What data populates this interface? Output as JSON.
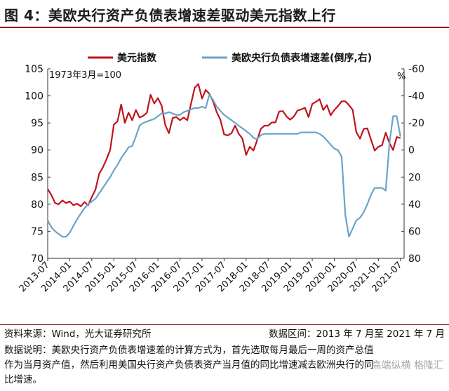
{
  "figure_title": "图 4：美欧央行资产负债表增速差驱动美元指数上行",
  "chart_data": {
    "type": "line",
    "title": "",
    "annotation": "1973年3月=100",
    "right_unit": "%",
    "legend_position": "top",
    "grid": false,
    "x_tick_labels": [
      "2013-07",
      "2014-01",
      "2014-07",
      "2015-01",
      "2015-07",
      "2016-01",
      "2016-07",
      "2017-01",
      "2017-07",
      "2018-01",
      "2018-07",
      "2019-01",
      "2019-07",
      "2020-01",
      "2020-07",
      "2021-01",
      "2021-07"
    ],
    "x_range": [
      "2013-07",
      "2021-08"
    ],
    "y_left": {
      "min": 70,
      "max": 105,
      "ticks": [
        70,
        75,
        80,
        85,
        90,
        95,
        100,
        105
      ]
    },
    "y_right": {
      "min": 80,
      "max": -60,
      "inverted": true,
      "ticks": [
        -60,
        -40,
        -20,
        0,
        20,
        40,
        60,
        80
      ]
    },
    "series": [
      {
        "name": "美元指数",
        "axis": "left",
        "color": "#c0141d",
        "points": [
          [
            "2013-07",
            82.8
          ],
          [
            "2013-08",
            81.7
          ],
          [
            "2013-09",
            80.2
          ],
          [
            "2013-10",
            80.0
          ],
          [
            "2013-11",
            80.7
          ],
          [
            "2013-12",
            80.2
          ],
          [
            "2014-01",
            80.5
          ],
          [
            "2014-02",
            79.8
          ],
          [
            "2014-03",
            80.1
          ],
          [
            "2014-04",
            79.6
          ],
          [
            "2014-05",
            80.4
          ],
          [
            "2014-06",
            79.8
          ],
          [
            "2014-07",
            81.3
          ],
          [
            "2014-08",
            82.7
          ],
          [
            "2014-09",
            85.6
          ],
          [
            "2014-10",
            86.8
          ],
          [
            "2014-11",
            88.3
          ],
          [
            "2014-12",
            90.0
          ],
          [
            "2015-01",
            94.7
          ],
          [
            "2015-02",
            95.3
          ],
          [
            "2015-03",
            98.4
          ],
          [
            "2015-04",
            95.0
          ],
          [
            "2015-05",
            96.9
          ],
          [
            "2015-06",
            95.5
          ],
          [
            "2015-07",
            97.4
          ],
          [
            "2015-08",
            96.0
          ],
          [
            "2015-09",
            96.3
          ],
          [
            "2015-10",
            96.9
          ],
          [
            "2015-11",
            100.2
          ],
          [
            "2015-12",
            98.6
          ],
          [
            "2016-01",
            99.6
          ],
          [
            "2016-02",
            98.2
          ],
          [
            "2016-03",
            94.6
          ],
          [
            "2016-04",
            93.1
          ],
          [
            "2016-05",
            95.9
          ],
          [
            "2016-06",
            96.1
          ],
          [
            "2016-07",
            95.5
          ],
          [
            "2016-08",
            96.0
          ],
          [
            "2016-09",
            95.5
          ],
          [
            "2016-10",
            98.5
          ],
          [
            "2016-11",
            101.5
          ],
          [
            "2016-12",
            102.2
          ],
          [
            "2017-01",
            99.5
          ],
          [
            "2017-02",
            101.1
          ],
          [
            "2017-03",
            100.4
          ],
          [
            "2017-04",
            99.0
          ],
          [
            "2017-05",
            97.0
          ],
          [
            "2017-06",
            95.6
          ],
          [
            "2017-07",
            92.9
          ],
          [
            "2017-08",
            92.7
          ],
          [
            "2017-09",
            93.1
          ],
          [
            "2017-10",
            94.5
          ],
          [
            "2017-11",
            93.0
          ],
          [
            "2017-12",
            92.1
          ],
          [
            "2018-01",
            89.1
          ],
          [
            "2018-02",
            90.6
          ],
          [
            "2018-03",
            89.9
          ],
          [
            "2018-04",
            91.8
          ],
          [
            "2018-05",
            93.9
          ],
          [
            "2018-06",
            94.5
          ],
          [
            "2018-07",
            94.5
          ],
          [
            "2018-08",
            95.1
          ],
          [
            "2018-09",
            95.1
          ],
          [
            "2018-10",
            97.1
          ],
          [
            "2018-11",
            97.2
          ],
          [
            "2018-12",
            96.2
          ],
          [
            "2019-01",
            95.6
          ],
          [
            "2019-02",
            96.2
          ],
          [
            "2019-03",
            97.3
          ],
          [
            "2019-04",
            97.5
          ],
          [
            "2019-05",
            97.8
          ],
          [
            "2019-06",
            96.1
          ],
          [
            "2019-07",
            98.5
          ],
          [
            "2019-08",
            98.9
          ],
          [
            "2019-09",
            99.4
          ],
          [
            "2019-10",
            97.4
          ],
          [
            "2019-11",
            98.3
          ],
          [
            "2019-12",
            96.4
          ],
          [
            "2020-01",
            97.4
          ],
          [
            "2020-02",
            98.1
          ],
          [
            "2020-03",
            99.0
          ],
          [
            "2020-04",
            99.0
          ],
          [
            "2020-05",
            98.3
          ],
          [
            "2020-06",
            97.4
          ],
          [
            "2020-07",
            93.3
          ],
          [
            "2020-08",
            92.1
          ],
          [
            "2020-09",
            93.9
          ],
          [
            "2020-10",
            94.0
          ],
          [
            "2020-11",
            91.9
          ],
          [
            "2020-12",
            89.9
          ],
          [
            "2021-01",
            90.6
          ],
          [
            "2021-02",
            90.9
          ],
          [
            "2021-03",
            93.2
          ],
          [
            "2021-04",
            91.3
          ],
          [
            "2021-05",
            90.0
          ],
          [
            "2021-06",
            92.4
          ],
          [
            "2021-07",
            92.2
          ]
        ]
      },
      {
        "name": "美欧央行负债表增速差(倒序,右)",
        "axis": "right",
        "color": "#6aa4c8",
        "points": [
          [
            "2013-07",
            52
          ],
          [
            "2013-08",
            57
          ],
          [
            "2013-09",
            60
          ],
          [
            "2013-10",
            62
          ],
          [
            "2013-11",
            64
          ],
          [
            "2013-12",
            64
          ],
          [
            "2014-01",
            61
          ],
          [
            "2014-02",
            56
          ],
          [
            "2014-03",
            51
          ],
          [
            "2014-04",
            47
          ],
          [
            "2014-05",
            43
          ],
          [
            "2014-06",
            40
          ],
          [
            "2014-07",
            38
          ],
          [
            "2014-08",
            36
          ],
          [
            "2014-09",
            32
          ],
          [
            "2014-10",
            28
          ],
          [
            "2014-11",
            24
          ],
          [
            "2014-12",
            20
          ],
          [
            "2015-01",
            15
          ],
          [
            "2015-02",
            11
          ],
          [
            "2015-03",
            6
          ],
          [
            "2015-04",
            2
          ],
          [
            "2015-05",
            -2
          ],
          [
            "2015-06",
            -3
          ],
          [
            "2015-07",
            -10
          ],
          [
            "2015-08",
            -18
          ],
          [
            "2015-09",
            -20
          ],
          [
            "2015-10",
            -21
          ],
          [
            "2015-11",
            -22
          ],
          [
            "2015-12",
            -23
          ],
          [
            "2016-01",
            -25
          ],
          [
            "2016-02",
            -27
          ],
          [
            "2016-03",
            -27
          ],
          [
            "2016-04",
            -28
          ],
          [
            "2016-05",
            -27
          ],
          [
            "2016-06",
            -26
          ],
          [
            "2016-07",
            -26
          ],
          [
            "2016-08",
            -28
          ],
          [
            "2016-09",
            -29
          ],
          [
            "2016-10",
            -30
          ],
          [
            "2016-11",
            -31
          ],
          [
            "2016-12",
            -31
          ],
          [
            "2017-01",
            -32
          ],
          [
            "2017-02",
            -31
          ],
          [
            "2017-03",
            -41
          ],
          [
            "2017-04",
            -37
          ],
          [
            "2017-05",
            -32
          ],
          [
            "2017-06",
            -29
          ],
          [
            "2017-07",
            -26
          ],
          [
            "2017-08",
            -24
          ],
          [
            "2017-09",
            -22
          ],
          [
            "2017-10",
            -20
          ],
          [
            "2017-11",
            -18
          ],
          [
            "2017-12",
            -16
          ],
          [
            "2018-01",
            -14
          ],
          [
            "2018-02",
            -12
          ],
          [
            "2018-03",
            -9
          ],
          [
            "2018-04",
            -8
          ],
          [
            "2018-05",
            -11
          ],
          [
            "2018-06",
            -12
          ],
          [
            "2018-07",
            -12
          ],
          [
            "2018-08",
            -12
          ],
          [
            "2018-09",
            -12
          ],
          [
            "2018-10",
            -12
          ],
          [
            "2018-11",
            -12
          ],
          [
            "2018-12",
            -12
          ],
          [
            "2019-01",
            -12
          ],
          [
            "2019-02",
            -12
          ],
          [
            "2019-03",
            -12
          ],
          [
            "2019-04",
            -13
          ],
          [
            "2019-05",
            -13
          ],
          [
            "2019-06",
            -13
          ],
          [
            "2019-07",
            -13
          ],
          [
            "2019-08",
            -13
          ],
          [
            "2019-09",
            -12
          ],
          [
            "2019-10",
            -10
          ],
          [
            "2019-11",
            -7
          ],
          [
            "2019-12",
            -4
          ],
          [
            "2020-01",
            -1
          ],
          [
            "2020-02",
            0
          ],
          [
            "2020-03",
            5
          ],
          [
            "2020-04",
            48
          ],
          [
            "2020-05",
            64
          ],
          [
            "2020-06",
            58
          ],
          [
            "2020-07",
            52
          ],
          [
            "2020-08",
            50
          ],
          [
            "2020-09",
            46
          ],
          [
            "2020-10",
            40
          ],
          [
            "2020-11",
            33
          ],
          [
            "2020-12",
            28
          ],
          [
            "2021-01",
            28
          ],
          [
            "2021-02",
            28
          ],
          [
            "2021-03",
            30
          ],
          [
            "2021-04",
            -5
          ],
          [
            "2021-05",
            -25
          ],
          [
            "2021-06",
            -25
          ],
          [
            "2021-07",
            -10
          ]
        ]
      }
    ]
  },
  "footer": {
    "source": "资料来源：Wind，光大证券研究所",
    "range": "数据区间：2013 年 7 月至 2021 年 7 月",
    "note_line1": "数据说明：美欧央行资产负债表增速差的计算方式为，首先选取每月最后一周的资产总值",
    "note_line2": "作为当月资产值，然后利用美国央行资产负债表资产当月值的同比增速减去欧洲央行的同",
    "note_line3": "比增速。"
  },
  "watermark": "高端纵横 格隆汇"
}
